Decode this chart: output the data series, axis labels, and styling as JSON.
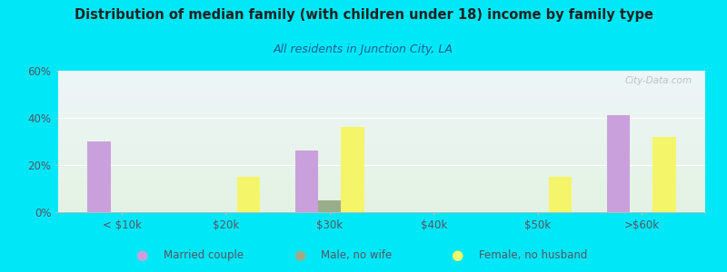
{
  "title": "Distribution of median family (with children under 18) income by family type",
  "subtitle": "All residents in Junction City, LA",
  "categories": [
    "< $10k",
    "$20k",
    "$30k",
    "$40k",
    "$50k",
    ">$60k"
  ],
  "married_couple": [
    30,
    0,
    26,
    0,
    0,
    41
  ],
  "male_no_wife": [
    0,
    0,
    5,
    0,
    0,
    0
  ],
  "female_no_husband": [
    0,
    15,
    36,
    0,
    15,
    32
  ],
  "married_color": "#c9a0dc",
  "male_color": "#9aad8a",
  "female_color": "#f5f56a",
  "bg_outer": "#00e8f8",
  "title_color": "#222222",
  "subtitle_color": "#1a6090",
  "axis_color": "#555566",
  "ylim": [
    0,
    60
  ],
  "yticks": [
    0,
    20,
    40,
    60
  ],
  "ytick_labels": [
    "0%",
    "20%",
    "40%",
    "60%"
  ],
  "bar_width": 0.22,
  "watermark": "City-Data.com"
}
